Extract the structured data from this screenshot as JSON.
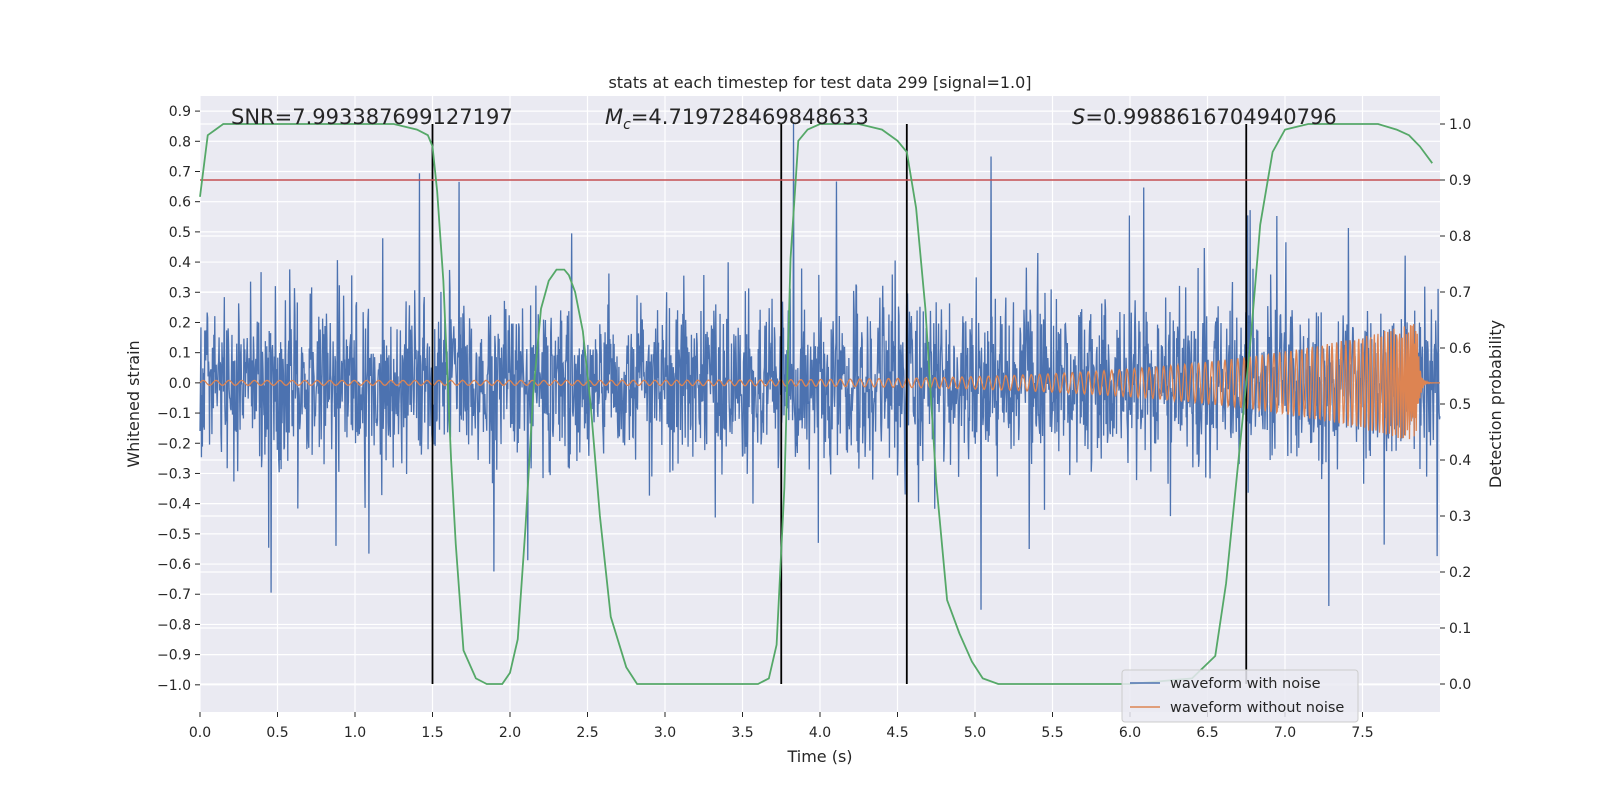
{
  "chart_data": {
    "type": "line",
    "title": "stats at each timestep for test data 299 [signal=1.0]",
    "xlabel": "Time (s)",
    "ylabel": "Whitened strain",
    "y2label": "Detection probability",
    "xlim": [
      0.0,
      8.0
    ],
    "ylim": [
      -1.09,
      0.95
    ],
    "y2lim": [
      -0.05,
      1.05
    ],
    "xticks": [
      "0.0",
      "0.5",
      "1.0",
      "1.5",
      "2.0",
      "2.5",
      "3.0",
      "3.5",
      "4.0",
      "4.5",
      "5.0",
      "5.5",
      "6.0",
      "6.5",
      "7.0",
      "7.5"
    ],
    "yticks": [
      "0.9",
      "0.8",
      "0.7",
      "0.6",
      "0.5",
      "0.4",
      "0.3",
      "0.2",
      "0.1",
      "0.0",
      "−0.1",
      "−0.2",
      "−0.3",
      "−0.4",
      "−0.5",
      "−0.6",
      "−0.7",
      "−0.8",
      "−0.9",
      "−1.0"
    ],
    "y2ticks": [
      "1.0",
      "0.9",
      "0.8",
      "0.7",
      "0.6",
      "0.5",
      "0.4",
      "0.3",
      "0.2",
      "0.1",
      "0.0"
    ],
    "annotations": {
      "snr": "SNR=7.993387699127197",
      "mc_label": "M",
      "mc_sub": "c",
      "mc_value": "=4.719728469848633",
      "s_label": "S",
      "s_value": "=0.9988616704940796"
    },
    "threshold": {
      "value": 0.9,
      "axis": "y2",
      "color": "#c44e52"
    },
    "vlines": [
      1.5,
      3.75,
      4.56,
      6.75
    ],
    "series": [
      {
        "name": "waveform with noise",
        "color": "#4c72b0",
        "envelope_pos": 0.45,
        "envelope_neg": -0.45,
        "peak_max": 0.86,
        "peak_min": -1.0
      },
      {
        "name": "waveform without noise",
        "color": "#dd8452",
        "amplitude_start": 0.008,
        "amplitude_end": 0.2,
        "merger_time": 7.85,
        "end_time": 8.0
      },
      {
        "name": "detection probability",
        "color": "#55a868",
        "x": [
          0.0,
          0.05,
          0.1,
          0.15,
          0.2,
          0.3,
          0.5,
          0.75,
          1.0,
          1.25,
          1.4,
          1.47,
          1.5,
          1.53,
          1.57,
          1.62,
          1.65,
          1.7,
          1.78,
          1.85,
          1.95,
          2.0,
          2.05,
          2.1,
          2.15,
          2.2,
          2.25,
          2.3,
          2.35,
          2.38,
          2.42,
          2.47,
          2.52,
          2.58,
          2.65,
          2.75,
          2.82,
          2.88,
          2.95,
          3.1,
          3.3,
          3.5,
          3.6,
          3.67,
          3.72,
          3.77,
          3.81,
          3.86,
          3.92,
          4.0,
          4.1,
          4.25,
          4.4,
          4.5,
          4.56,
          4.62,
          4.68,
          4.75,
          4.82,
          4.9,
          4.98,
          5.05,
          5.15,
          5.3,
          5.6,
          6.0,
          6.4,
          6.55,
          6.62,
          6.7,
          6.78,
          6.84,
          6.92,
          7.0,
          7.15,
          7.3,
          7.45,
          7.6,
          7.72,
          7.8,
          7.87,
          7.95
        ],
        "y": [
          0.87,
          0.98,
          0.99,
          1.0,
          1.0,
          1.0,
          1.0,
          1.0,
          1.0,
          1.0,
          0.99,
          0.98,
          0.96,
          0.88,
          0.72,
          0.4,
          0.25,
          0.06,
          0.01,
          0.0,
          0.0,
          0.02,
          0.08,
          0.28,
          0.52,
          0.67,
          0.72,
          0.74,
          0.74,
          0.73,
          0.7,
          0.63,
          0.5,
          0.3,
          0.12,
          0.03,
          0.0,
          0.0,
          0.0,
          0.0,
          0.0,
          0.0,
          0.0,
          0.01,
          0.07,
          0.35,
          0.76,
          0.97,
          0.99,
          1.0,
          1.0,
          1.0,
          0.99,
          0.97,
          0.95,
          0.85,
          0.67,
          0.36,
          0.15,
          0.09,
          0.04,
          0.01,
          0.0,
          0.0,
          0.0,
          0.0,
          0.01,
          0.05,
          0.18,
          0.4,
          0.62,
          0.82,
          0.95,
          0.99,
          1.0,
          1.0,
          1.0,
          1.0,
          0.99,
          0.98,
          0.96,
          0.93
        ]
      }
    ],
    "legend": {
      "position": "lower-right",
      "items": [
        "waveform with noise",
        "waveform without noise"
      ]
    }
  }
}
